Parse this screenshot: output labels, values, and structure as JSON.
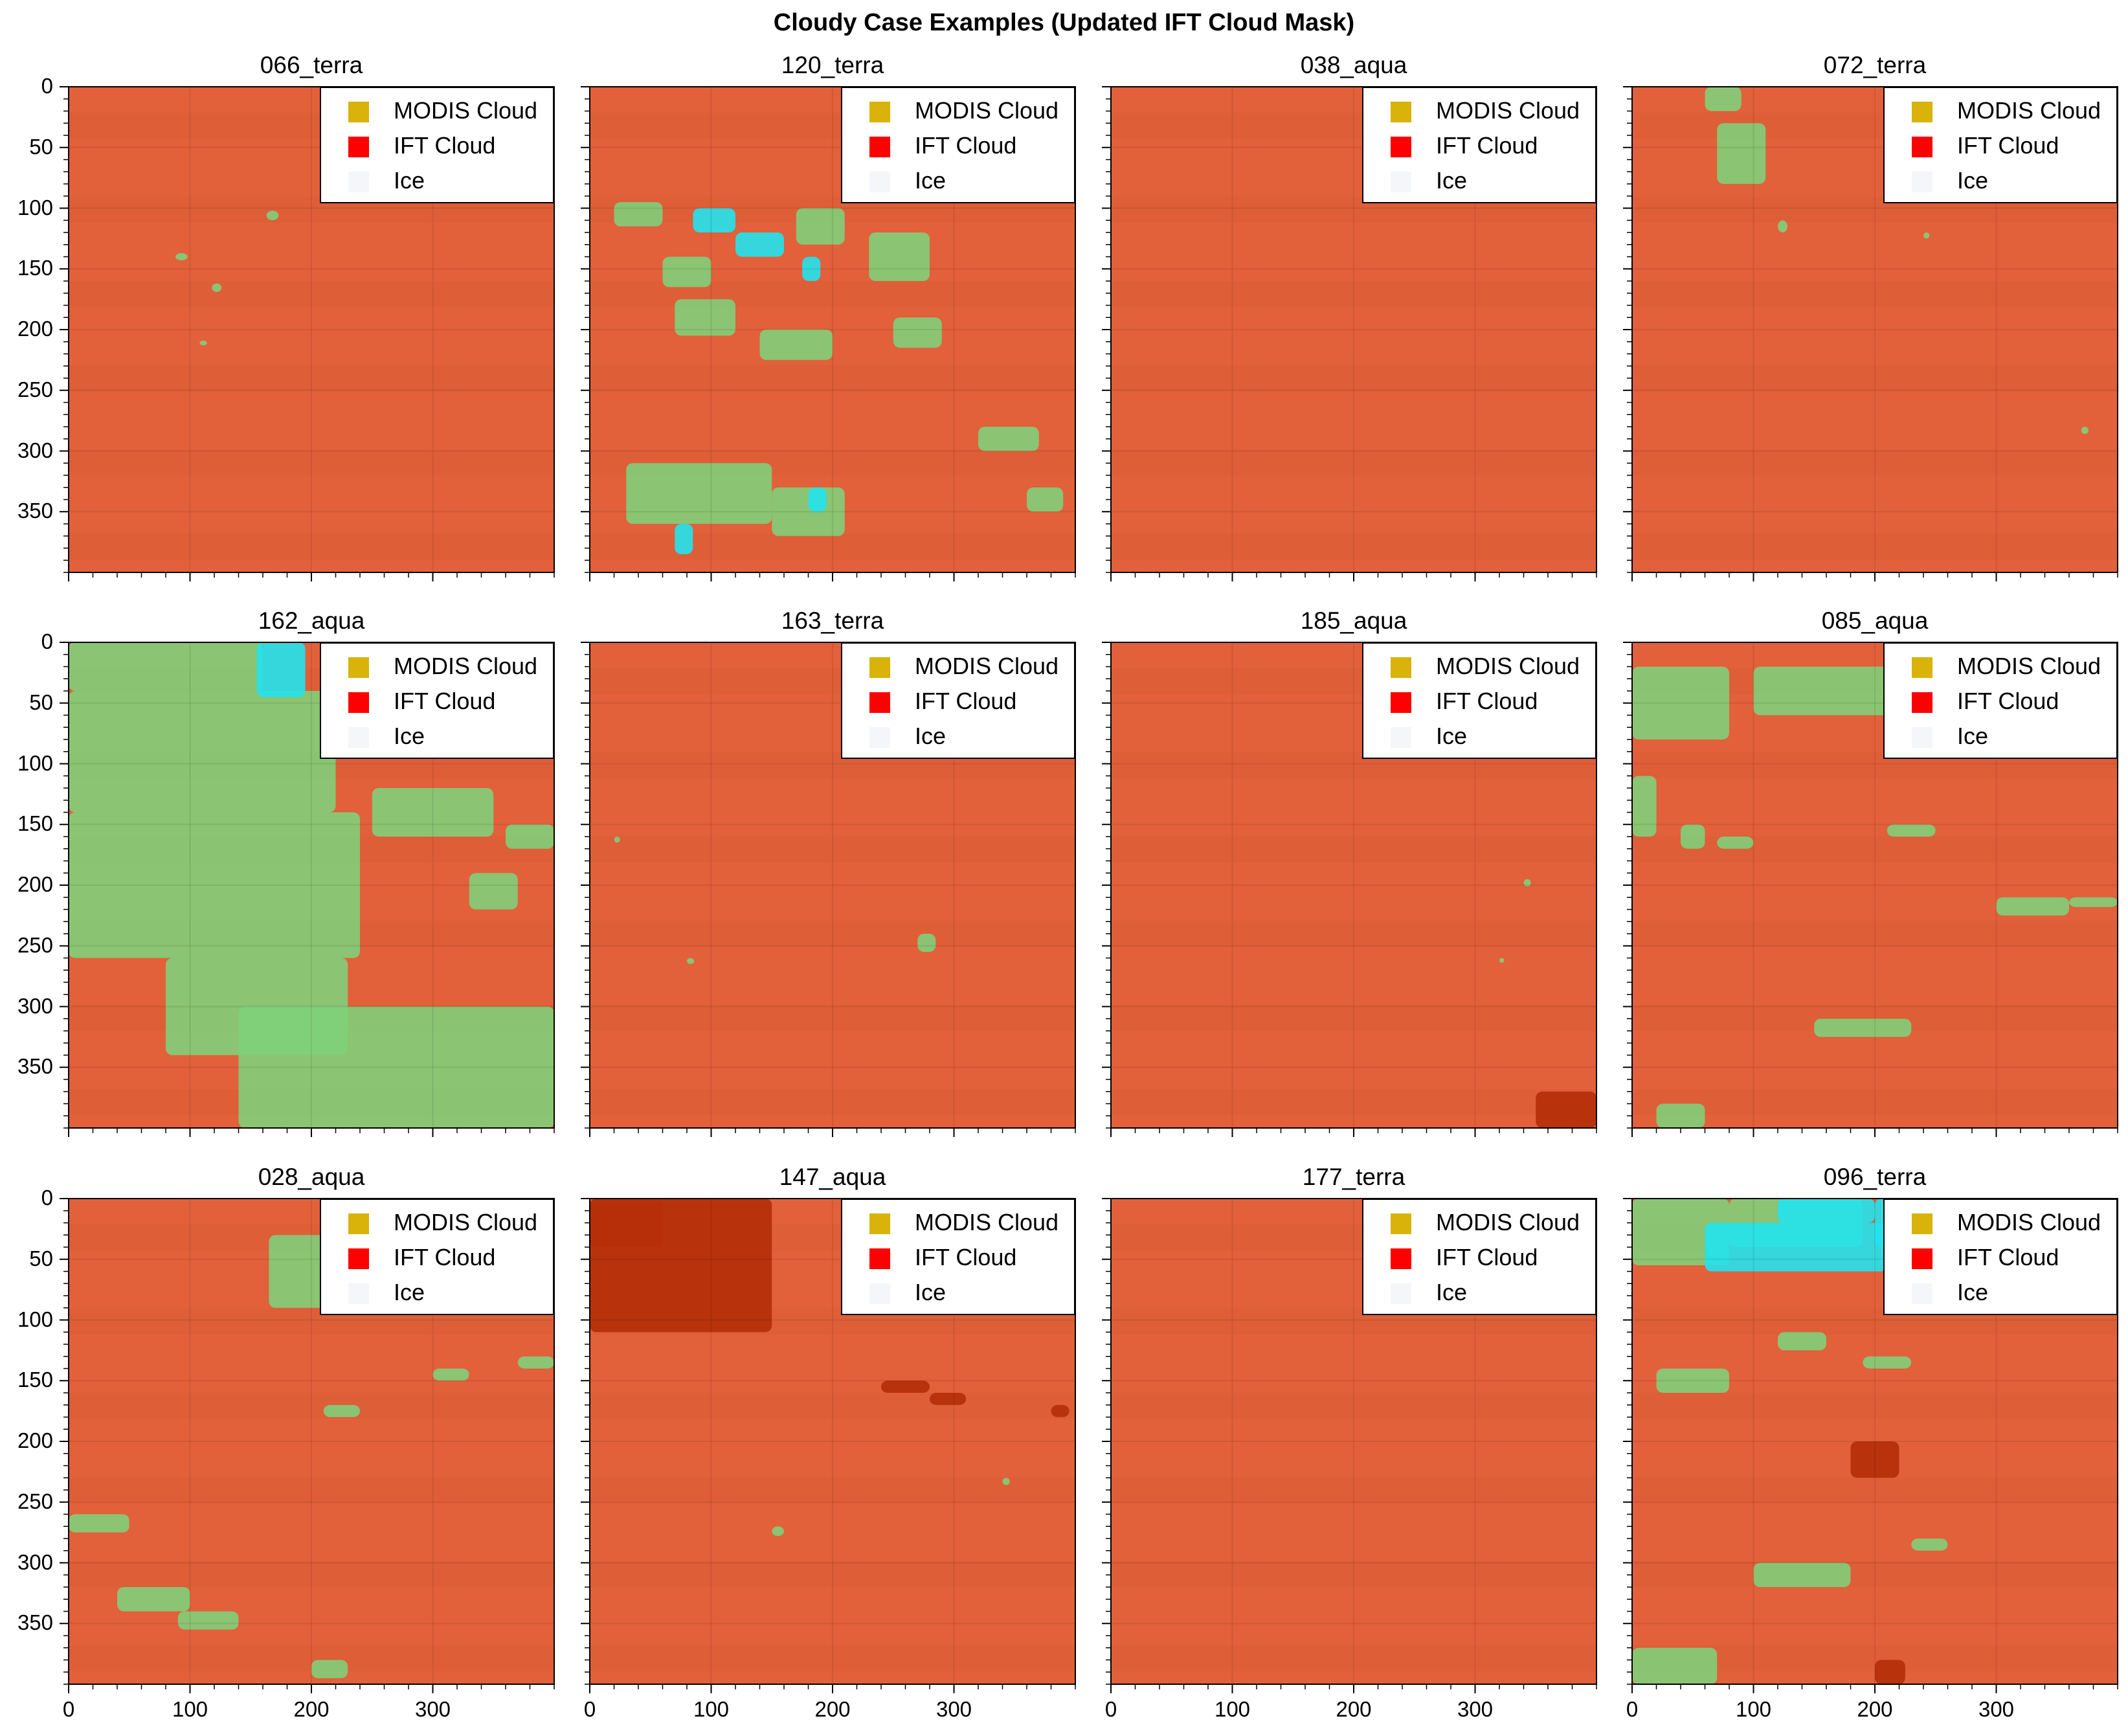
{
  "figure": {
    "title": "Cloudy Case Examples (Updated IFT Cloud Mask)"
  },
  "colors": {
    "background_image": "#e2603a",
    "modis_cloud": "#d9b20a",
    "ift_cloud": "#ff0000",
    "ice": "#f4f6fa",
    "green_overlay": "#7ed27a",
    "cyan_overlay": "#22e3ee",
    "dark_red": "#b52f0a"
  },
  "legend": {
    "placement": "top-right",
    "entries": [
      {
        "label": "MODIS Cloud",
        "color": "#d9b20a"
      },
      {
        "label": "IFT Cloud",
        "color": "#ff0000"
      },
      {
        "label": "Ice",
        "color": "#f4f6fa"
      }
    ]
  },
  "chart_data": {
    "type": "image-grid",
    "rows": 3,
    "cols": 4,
    "xlim": [
      0,
      400
    ],
    "ylim": [
      400,
      0
    ],
    "x_ticks": [
      0,
      100,
      200,
      300
    ],
    "y_ticks": [
      0,
      50,
      100,
      150,
      200,
      250,
      300,
      350
    ],
    "x_ticks_shown_on_bottom_row_only": true,
    "y_ticks_shown_on_left_column_only": true,
    "panels": [
      {
        "title": "066_terra",
        "green": [
          [
            88,
            137,
            10,
            6
          ],
          [
            118,
            162,
            8,
            7
          ],
          [
            108,
            209,
            6,
            4
          ],
          [
            163,
            102,
            10,
            8
          ]
        ],
        "cyan": [],
        "darkred": []
      },
      {
        "title": "120_terra",
        "green": [
          [
            20,
            95,
            40,
            20
          ],
          [
            60,
            140,
            40,
            25
          ],
          [
            70,
            175,
            50,
            30
          ],
          [
            140,
            200,
            60,
            25
          ],
          [
            170,
            100,
            40,
            30
          ],
          [
            230,
            120,
            50,
            40
          ],
          [
            250,
            190,
            40,
            25
          ],
          [
            30,
            310,
            120,
            50
          ],
          [
            150,
            330,
            60,
            40
          ],
          [
            320,
            280,
            50,
            20
          ],
          [
            360,
            330,
            30,
            20
          ]
        ],
        "cyan": [
          [
            85,
            100,
            35,
            20
          ],
          [
            120,
            120,
            40,
            20
          ],
          [
            175,
            140,
            15,
            20
          ],
          [
            180,
            330,
            15,
            20
          ],
          [
            70,
            360,
            15,
            25
          ]
        ],
        "darkred": []
      },
      {
        "title": "038_aqua",
        "green": [],
        "cyan": [],
        "darkred": []
      },
      {
        "title": "072_terra",
        "green": [
          [
            60,
            0,
            30,
            20
          ],
          [
            70,
            30,
            40,
            50
          ],
          [
            120,
            110,
            8,
            10
          ],
          [
            240,
            120,
            5,
            5
          ],
          [
            370,
            280,
            6,
            6
          ]
        ],
        "cyan": [],
        "darkred": []
      },
      {
        "title": "162_aqua",
        "green": [
          [
            0,
            0,
            160,
            40
          ],
          [
            0,
            40,
            220,
            100
          ],
          [
            0,
            140,
            240,
            120
          ],
          [
            80,
            260,
            150,
            80
          ],
          [
            140,
            300,
            260,
            100
          ],
          [
            250,
            120,
            100,
            40
          ],
          [
            330,
            190,
            40,
            30
          ],
          [
            360,
            150,
            40,
            20
          ]
        ],
        "cyan": [
          [
            155,
            0,
            40,
            45
          ]
        ],
        "darkred": []
      },
      {
        "title": "163_terra",
        "green": [
          [
            270,
            240,
            15,
            15
          ],
          [
            80,
            260,
            6,
            5
          ],
          [
            20,
            160,
            5,
            5
          ]
        ],
        "cyan": [],
        "darkred": []
      },
      {
        "title": "185_aqua",
        "green": [
          [
            340,
            195,
            6,
            6
          ],
          [
            320,
            260,
            4,
            4
          ]
        ],
        "cyan": [],
        "darkred": [
          [
            350,
            370,
            50,
            30
          ]
        ]
      },
      {
        "title": "085_aqua",
        "green": [
          [
            0,
            20,
            80,
            60
          ],
          [
            100,
            20,
            120,
            40
          ],
          [
            220,
            30,
            30,
            20
          ],
          [
            0,
            110,
            20,
            50
          ],
          [
            40,
            150,
            20,
            20
          ],
          [
            70,
            160,
            30,
            10
          ],
          [
            210,
            150,
            40,
            10
          ],
          [
            300,
            210,
            60,
            15
          ],
          [
            150,
            310,
            80,
            15
          ],
          [
            360,
            210,
            40,
            8
          ],
          [
            20,
            380,
            40,
            20
          ]
        ],
        "cyan": [],
        "darkred": []
      },
      {
        "title": "028_aqua",
        "green": [
          [
            165,
            30,
            60,
            60
          ],
          [
            0,
            260,
            50,
            15
          ],
          [
            40,
            320,
            60,
            20
          ],
          [
            210,
            170,
            30,
            10
          ],
          [
            300,
            140,
            30,
            10
          ],
          [
            90,
            340,
            50,
            15
          ],
          [
            200,
            380,
            30,
            15
          ],
          [
            370,
            130,
            30,
            10
          ]
        ],
        "cyan": [],
        "darkred": []
      },
      {
        "title": "147_aqua",
        "green": [
          [
            150,
            270,
            10,
            8
          ],
          [
            340,
            230,
            6,
            6
          ]
        ],
        "cyan": [],
        "darkred": [
          [
            0,
            0,
            150,
            110
          ],
          [
            0,
            0,
            60,
            40
          ],
          [
            240,
            150,
            40,
            10
          ],
          [
            280,
            160,
            30,
            10
          ],
          [
            380,
            170,
            15,
            10
          ]
        ]
      },
      {
        "title": "177_terra",
        "green": [],
        "cyan": [],
        "darkred": []
      },
      {
        "title": "096_terra",
        "green": [
          [
            0,
            0,
            80,
            55
          ],
          [
            80,
            0,
            110,
            40
          ],
          [
            20,
            140,
            60,
            20
          ],
          [
            120,
            110,
            40,
            15
          ],
          [
            190,
            130,
            40,
            10
          ],
          [
            100,
            300,
            80,
            20
          ],
          [
            0,
            370,
            70,
            30
          ],
          [
            230,
            280,
            30,
            10
          ]
        ],
        "cyan": [
          [
            60,
            20,
            150,
            40
          ],
          [
            120,
            0,
            80,
            20
          ],
          [
            200,
            0,
            60,
            40
          ]
        ],
        "darkred": [
          [
            180,
            200,
            40,
            30
          ],
          [
            200,
            380,
            25,
            20
          ]
        ]
      }
    ]
  }
}
